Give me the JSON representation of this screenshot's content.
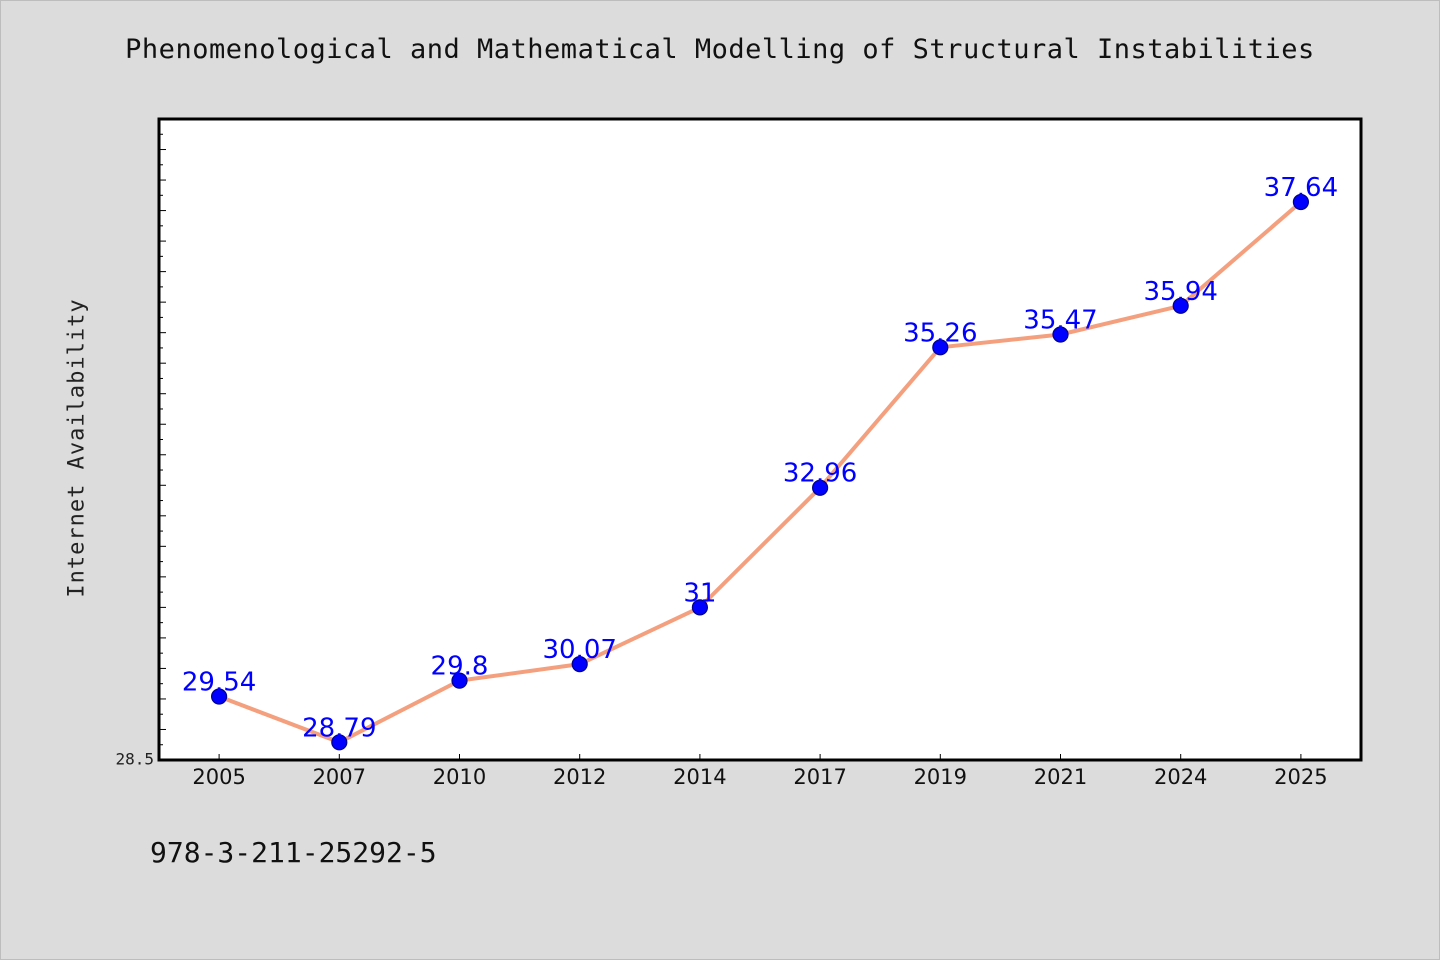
{
  "chart_data": {
    "type": "line",
    "title": "Phenomenological and Mathematical Modelling of Structural Instabilities",
    "xlabel": "",
    "ylabel": "Internet Availability",
    "categories": [
      "2005",
      "2007",
      "2010",
      "2012",
      "2014",
      "2017",
      "2019",
      "2021",
      "2024",
      "2025"
    ],
    "series": [
      {
        "values": [
          29.54,
          28.79,
          29.8,
          30.07,
          31,
          32.96,
          35.26,
          35.47,
          35.94,
          37.64
        ],
        "labels": [
          "29.54",
          "28.79",
          "29.8",
          "30.07",
          "31",
          "32.96",
          "35.26",
          "35.47",
          "35.94",
          "37.64"
        ]
      }
    ],
    "ylim": [
      28.5,
      39.0
    ],
    "yticklabels": [
      "28.5"
    ],
    "grid": false,
    "legend": "none",
    "colors": {
      "line": "#f4a07e",
      "marker": "#0000ff",
      "marker_edge": "#00008b",
      "data_label": "#0000ff",
      "background": "#dcdcdc",
      "plot_background": "#ffffff"
    }
  },
  "footer": {
    "isbn": "978-3-211-25292-5"
  }
}
